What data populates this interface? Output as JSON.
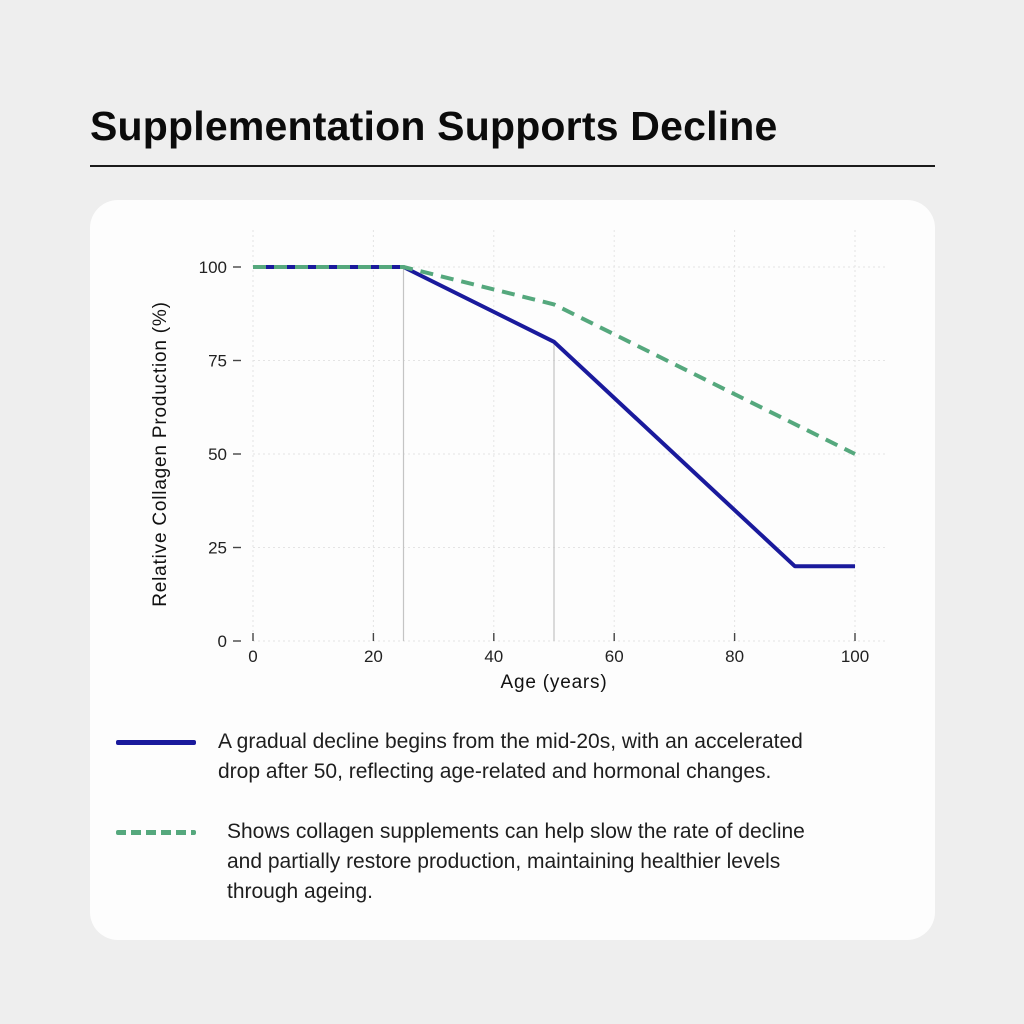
{
  "page": {
    "background_color": "#eeeeee",
    "card_color": "#fdfdfd"
  },
  "header": {
    "title": "Supplementation Supports Decline"
  },
  "chart_data": {
    "type": "line",
    "xlabel": "Age (years)",
    "ylabel": "Relative Collagen Production (%)",
    "xlim": [
      0,
      100
    ],
    "ylim": [
      0,
      100
    ],
    "x_ticks": [
      0,
      20,
      40,
      60,
      80,
      100
    ],
    "y_ticks": [
      0,
      25,
      50,
      75,
      100
    ],
    "grid": true,
    "grid_color": "#e4e4e4",
    "reference_lines": [
      {
        "x": 25,
        "y_from": 0,
        "y_to": 100
      },
      {
        "x": 50,
        "y_from": 0,
        "y_to": 80
      }
    ],
    "reference_line_color": "#c4c4c4",
    "series": [
      {
        "name": "natural-collagen-decline",
        "style": "solid",
        "color": "#1a1a9c",
        "points": [
          [
            0,
            100
          ],
          [
            25,
            100
          ],
          [
            50,
            80
          ],
          [
            90,
            20
          ],
          [
            100,
            20
          ]
        ]
      },
      {
        "name": "with-supplementation",
        "style": "dashed",
        "color": "#55a87d",
        "points": [
          [
            0,
            100
          ],
          [
            25,
            100
          ],
          [
            50,
            90
          ],
          [
            100,
            50
          ]
        ]
      }
    ],
    "legend_position": "below-chart"
  },
  "legend": [
    {
      "swatch": "solid",
      "color": "#1a1a9c",
      "lines": [
        "A gradual decline begins from the mid-20s, with an accelerated",
        "drop after 50, reflecting age-related and hormonal changes."
      ]
    },
    {
      "swatch": "dashed",
      "color": "#55a87d",
      "lines": [
        "Shows collagen supplements can help slow the rate of decline",
        "and partially restore production, maintaining healthier levels",
        "through ageing."
      ]
    }
  ]
}
